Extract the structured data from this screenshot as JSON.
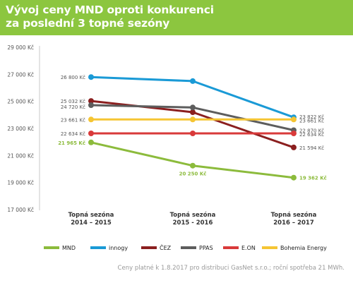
{
  "title_lines": [
    "Vývoj ceny MND oproti konkurenci",
    "za poslední 3 topné sezóny"
  ],
  "footnote": "Ceny platné k 1.8.2017 pro distribuci GasNet s.r.o.; roční spotřeba 21 MWh.",
  "chart_data": {
    "type": "line",
    "title": "Vývoj ceny MND oproti konkurenci za poslední 3 topné sezóny",
    "categories": [
      [
        "Topná sezóna",
        "2014 – 2015"
      ],
      [
        "Topná sezóna",
        "2015 - 2016"
      ],
      [
        "Topná sezóna",
        "2016 – 2017"
      ]
    ],
    "ylim": [
      17000,
      29000
    ],
    "yticks": [
      17000,
      19000,
      21000,
      23000,
      25000,
      27000,
      29000
    ],
    "ytick_labels": [
      "17 000 Kč",
      "19 000 Kč",
      "21 000 Kč",
      "23 000 Kč",
      "25 000 Kč",
      "27 000 Kč",
      "29 000 Kč"
    ],
    "grid": false,
    "legend_position": "bottom",
    "series": [
      {
        "name": "MND",
        "color": "#8cbb3c",
        "values": [
          21965,
          20250,
          19362
        ],
        "labels": [
          "21 965 Kč",
          "20 250 Kč",
          "19 362 Kč"
        ],
        "label_color": "#8cbb3c",
        "label_bold": true
      },
      {
        "name": "innogy",
        "color": "#1a9ad6",
        "values": [
          26800,
          26500,
          23822
        ],
        "labels": [
          "26 800 Kč",
          "",
          "23 822 Kč"
        ]
      },
      {
        "name": "ČEZ",
        "color": "#8b1f1f",
        "values": [
          25032,
          24200,
          21594
        ],
        "labels": [
          "25 032 Kč",
          "",
          "21 594 Kč"
        ]
      },
      {
        "name": "PPAS",
        "color": "#5d5d5d",
        "values": [
          24720,
          24550,
          22870
        ],
        "labels": [
          "24 720 Kč",
          "",
          "22 870 Kč"
        ]
      },
      {
        "name": "E.ON",
        "color": "#d93a3a",
        "values": [
          22634,
          22634,
          22634
        ],
        "labels": [
          "22 634 Kč",
          "",
          "22 634 Kč"
        ]
      },
      {
        "name": "Bohemia Energy",
        "color": "#f5c533",
        "values": [
          23661,
          23661,
          23661
        ],
        "labels": [
          "23 661 Kč",
          "",
          "23 661 Kč"
        ]
      }
    ]
  }
}
